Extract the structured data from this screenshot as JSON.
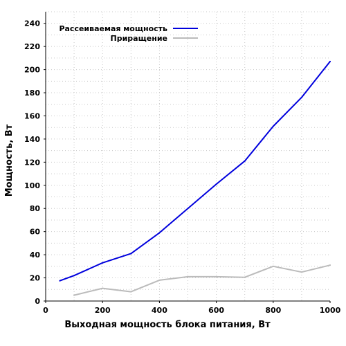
{
  "chart_data": {
    "type": "line",
    "title": "",
    "xlabel": "Выходная мощность блока питания, Вт",
    "ylabel": "Мощность, Вт",
    "xlim": [
      0,
      1000
    ],
    "ylim": [
      0,
      250
    ],
    "xticks": [
      0,
      200,
      400,
      600,
      800,
      1000
    ],
    "yticks": [
      0,
      20,
      40,
      60,
      80,
      100,
      120,
      140,
      160,
      180,
      200,
      220,
      240
    ],
    "grid": true,
    "legend_position": "top-left",
    "series": [
      {
        "name": "Рассеиваемая мощность",
        "color": "#0000dd",
        "x": [
          50,
          100,
          200,
          300,
          400,
          500,
          600,
          700,
          800,
          900,
          1000
        ],
        "y": [
          17.5,
          22,
          33,
          41,
          59,
          80,
          101,
          121,
          151,
          176,
          207
        ]
      },
      {
        "name": "Приращение",
        "color": "#bbbbbb",
        "x": [
          100,
          200,
          300,
          400,
          500,
          600,
          700,
          800,
          900,
          1000
        ],
        "y": [
          5,
          11,
          8,
          18,
          21,
          21,
          20.5,
          30,
          25,
          31
        ]
      }
    ]
  }
}
